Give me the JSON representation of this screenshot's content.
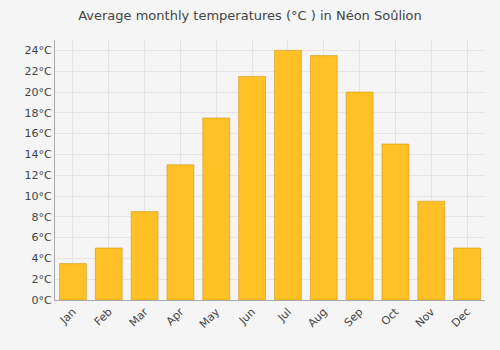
{
  "chart_data": {
    "type": "bar",
    "title": "Average monthly temperatures (°C ) in Néon Soûlion",
    "categories": [
      "Jan",
      "Feb",
      "Mar",
      "Apr",
      "May",
      "Jun",
      "Jul",
      "Aug",
      "Sep",
      "Oct",
      "Nov",
      "Dec"
    ],
    "values": [
      3.5,
      5.0,
      8.5,
      13.0,
      17.5,
      21.5,
      24.0,
      23.5,
      20.0,
      15.0,
      9.5,
      5.0
    ],
    "color": "#FFC125",
    "ylim": [
      0,
      25
    ],
    "yticks": [
      {
        "value": 0,
        "label": "0°C"
      },
      {
        "value": 2,
        "label": "2°C"
      },
      {
        "value": 4,
        "label": "4°C"
      },
      {
        "value": 6,
        "label": "6°C"
      },
      {
        "value": 8,
        "label": "8°C"
      },
      {
        "value": 10,
        "label": "10°C"
      },
      {
        "value": 12,
        "label": "12°C"
      },
      {
        "value": 14,
        "label": "14°C"
      },
      {
        "value": 16,
        "label": "16°C"
      },
      {
        "value": 18,
        "label": "18°C"
      },
      {
        "value": 20,
        "label": "20°C"
      },
      {
        "value": 22,
        "label": "22°C"
      },
      {
        "value": 24,
        "label": "24°C"
      }
    ],
    "grid": true
  }
}
